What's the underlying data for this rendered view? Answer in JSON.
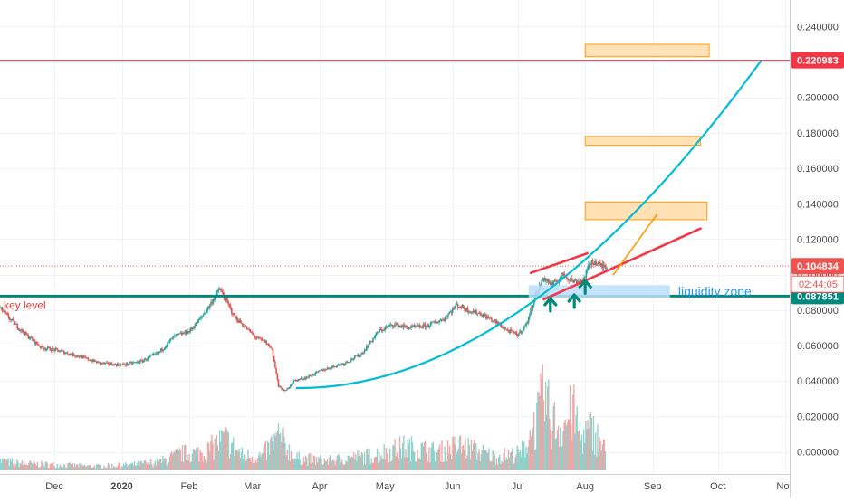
{
  "chart_data": {
    "type": "candlestick",
    "x_axis": {
      "tick_labels": [
        "Dec",
        "2020",
        "Feb",
        "Mar",
        "Apr",
        "May",
        "Jun",
        "Jul",
        "Aug",
        "Sep",
        "Oct",
        "Nov"
      ],
      "tick_dates": [
        "2019-12-01",
        "2020-01-01",
        "2020-02-01",
        "2020-03-01",
        "2020-04-01",
        "2020-05-01",
        "2020-06-01",
        "2020-07-01",
        "2020-08-01",
        "2020-09-01",
        "2020-10-01",
        "2020-11-01"
      ],
      "range": [
        "2019-11-06",
        "2020-11-03"
      ]
    },
    "y_axis": {
      "tick_labels": [
        "0.240000",
        "0.220000",
        "0.200000",
        "0.180000",
        "0.160000",
        "0.140000",
        "0.120000",
        "0.100000",
        "0.080000",
        "0.060000",
        "0.040000",
        "0.020000",
        "0.000000"
      ],
      "tick_values": [
        0.24,
        0.22,
        0.2,
        0.18,
        0.16,
        0.14,
        0.12,
        0.1,
        0.08,
        0.06,
        0.04,
        0.02,
        0.0
      ],
      "range": [
        -0.0125,
        0.255
      ],
      "grid": true
    },
    "price_labels": [
      {
        "value": 0.220983,
        "text": "0.220983",
        "color": "#f23645"
      },
      {
        "value": 0.104834,
        "text": "0.104834",
        "color": "#ef5350"
      },
      {
        "value": 0.087851,
        "text": "0.087851",
        "color": "#00897b"
      }
    ],
    "countdown": {
      "text": "02:44:05",
      "color": "#ef5350"
    },
    "price_series": [
      [
        "2019-11-06",
        0.081
      ],
      [
        "2019-11-12",
        0.073
      ],
      [
        "2019-11-18",
        0.066
      ],
      [
        "2019-11-25",
        0.059
      ],
      [
        "2019-12-03",
        0.057
      ],
      [
        "2019-12-12",
        0.054
      ],
      [
        "2019-12-22",
        0.05
      ],
      [
        "2020-01-01",
        0.049
      ],
      [
        "2020-01-10",
        0.051
      ],
      [
        "2020-01-18",
        0.056
      ],
      [
        "2020-01-25",
        0.065
      ],
      [
        "2020-02-01",
        0.068
      ],
      [
        "2020-02-06",
        0.075
      ],
      [
        "2020-02-10",
        0.082
      ],
      [
        "2020-02-15",
        0.092
      ],
      [
        "2020-02-18",
        0.085
      ],
      [
        "2020-02-22",
        0.076
      ],
      [
        "2020-02-27",
        0.07
      ],
      [
        "2020-03-03",
        0.064
      ],
      [
        "2020-03-07",
        0.062
      ],
      [
        "2020-03-10",
        0.058
      ],
      [
        "2020-03-13",
        0.037
      ],
      [
        "2020-03-16",
        0.034
      ],
      [
        "2020-03-20",
        0.04
      ],
      [
        "2020-03-26",
        0.042
      ],
      [
        "2020-04-02",
        0.046
      ],
      [
        "2020-04-12",
        0.05
      ],
      [
        "2020-04-20",
        0.055
      ],
      [
        "2020-04-28",
        0.068
      ],
      [
        "2020-05-05",
        0.072
      ],
      [
        "2020-05-12",
        0.07
      ],
      [
        "2020-05-20",
        0.071
      ],
      [
        "2020-05-28",
        0.075
      ],
      [
        "2020-06-03",
        0.083
      ],
      [
        "2020-06-08",
        0.08
      ],
      [
        "2020-06-14",
        0.078
      ],
      [
        "2020-06-21",
        0.073
      ],
      [
        "2020-06-27",
        0.068
      ],
      [
        "2020-07-01",
        0.066
      ],
      [
        "2020-07-05",
        0.072
      ],
      [
        "2020-07-09",
        0.088
      ],
      [
        "2020-07-13",
        0.098
      ],
      [
        "2020-07-17",
        0.094
      ],
      [
        "2020-07-22",
        0.1
      ],
      [
        "2020-07-27",
        0.096
      ],
      [
        "2020-07-31",
        0.097
      ],
      [
        "2020-08-04",
        0.108
      ],
      [
        "2020-08-08",
        0.105
      ],
      [
        "2020-08-11",
        0.1048
      ]
    ],
    "volume_series": [
      [
        "2019-11-05",
        0.007
      ],
      [
        "2019-11-15",
        0.005
      ],
      [
        "2019-12-01",
        0.004
      ],
      [
        "2019-12-20",
        0.003
      ],
      [
        "2020-01-05",
        0.004
      ],
      [
        "2020-01-18",
        0.006
      ],
      [
        "2020-01-28",
        0.012
      ],
      [
        "2020-02-08",
        0.013
      ],
      [
        "2020-02-17",
        0.023
      ],
      [
        "2020-02-25",
        0.011
      ],
      [
        "2020-03-05",
        0.01
      ],
      [
        "2020-03-13",
        0.025
      ],
      [
        "2020-03-20",
        0.009
      ],
      [
        "2020-04-05",
        0.007
      ],
      [
        "2020-04-25",
        0.011
      ],
      [
        "2020-05-10",
        0.017
      ],
      [
        "2020-05-25",
        0.013
      ],
      [
        "2020-06-04",
        0.018
      ],
      [
        "2020-06-20",
        0.01
      ],
      [
        "2020-07-02",
        0.012
      ],
      [
        "2020-07-09",
        0.033
      ],
      [
        "2020-07-13",
        0.054
      ],
      [
        "2020-07-16",
        0.036
      ],
      [
        "2020-07-21",
        0.031
      ],
      [
        "2020-07-26",
        0.043
      ],
      [
        "2020-07-30",
        0.024
      ],
      [
        "2020-08-04",
        0.03
      ],
      [
        "2020-08-10",
        0.014
      ]
    ],
    "annotations": [
      {
        "kind": "hline",
        "value": 0.220983,
        "color": "#f23645"
      },
      {
        "kind": "hline_dotted",
        "value": 0.104834,
        "color": "#ef5350"
      },
      {
        "kind": "hline_thick",
        "value": 0.087851,
        "color": "#00897b",
        "label": "key level"
      },
      {
        "kind": "box",
        "from": [
          "2020-08-01",
          0.131
        ],
        "to": [
          "2020-09-26",
          0.141
        ],
        "fill": "#ffe0b2",
        "stroke": "#ff9800"
      },
      {
        "kind": "box",
        "from": [
          "2020-08-01",
          0.173
        ],
        "to": [
          "2020-09-23",
          0.178
        ],
        "fill": "#ffe0b2",
        "stroke": "#ff9800"
      },
      {
        "kind": "box",
        "from": [
          "2020-08-01",
          0.223
        ],
        "to": [
          "2020-09-27",
          0.23
        ],
        "fill": "#ffe0b2",
        "stroke": "#ff9800"
      },
      {
        "kind": "box",
        "from": [
          "2020-07-06",
          0.087
        ],
        "to": [
          "2020-09-09",
          0.094
        ],
        "fill": "#bbdefb",
        "label": "liquidity zone",
        "label_color": "#2196f3"
      },
      {
        "kind": "line",
        "from": [
          "2020-07-07",
          0.101
        ],
        "to": [
          "2020-08-02",
          0.112
        ],
        "color": "#f23645"
      },
      {
        "kind": "line",
        "from": [
          "2020-07-13",
          0.086
        ],
        "to": [
          "2020-09-23",
          0.126
        ],
        "color": "#f23645"
      },
      {
        "kind": "line",
        "from": [
          "2020-08-14",
          0.1
        ],
        "to": [
          "2020-09-03",
          0.134
        ],
        "color": "#ff9800"
      },
      {
        "kind": "curve",
        "from": [
          "2020-03-21",
          0.036
        ],
        "control": [
          "2020-07-03",
          0.035
        ],
        "to": [
          "2020-10-21",
          0.221
        ],
        "color": "#00bcd4"
      },
      {
        "kind": "arrow",
        "at": [
          "2020-07-16",
          0.083
        ],
        "color": "#00897b"
      },
      {
        "kind": "arrow",
        "at": [
          "2020-07-27",
          0.085
        ],
        "color": "#00897b"
      },
      {
        "kind": "arrow",
        "at": [
          "2020-08-01",
          0.093
        ],
        "color": "#00897b"
      }
    ]
  }
}
